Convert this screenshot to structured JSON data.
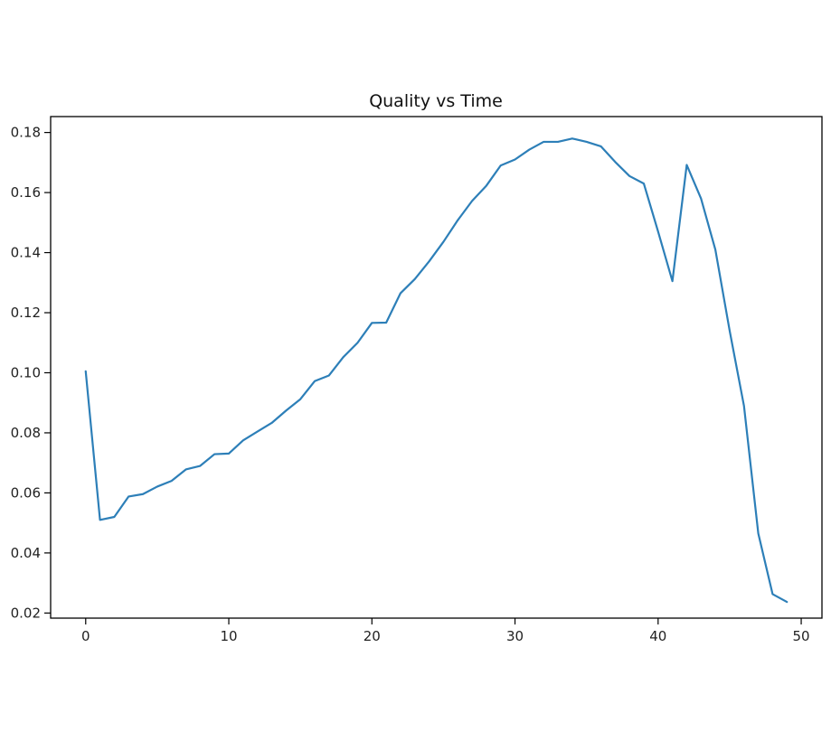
{
  "chart_data": {
    "type": "line",
    "title": "Quality vs Time",
    "xlabel": "",
    "ylabel": "",
    "xlim": [
      -2.45,
      51.45
    ],
    "ylim": [
      0.0183,
      0.1853
    ],
    "xticks": [
      0,
      10,
      20,
      30,
      40,
      50
    ],
    "yticks": [
      0.02,
      0.04,
      0.06,
      0.08,
      0.1,
      0.12,
      0.14,
      0.16,
      0.18
    ],
    "x_tick_labels": [
      "0",
      "10",
      "20",
      "30",
      "40",
      "50"
    ],
    "y_tick_labels": [
      "0.02",
      "0.04",
      "0.06",
      "0.08",
      "0.10",
      "0.12",
      "0.14",
      "0.16",
      "0.18"
    ],
    "grid": false,
    "line_color": "#2d7fb8",
    "series": [
      {
        "x": [
          0,
          1,
          2,
          3,
          4,
          5,
          6,
          7,
          8,
          9,
          10,
          11,
          12,
          13,
          14,
          15,
          16,
          17,
          18,
          19,
          20,
          21,
          22,
          23,
          24,
          25,
          26,
          27,
          28,
          29,
          30,
          31,
          32,
          33,
          34,
          35,
          36,
          37,
          38,
          39,
          40,
          41,
          42,
          43,
          44,
          45,
          46,
          47,
          48,
          49
        ],
        "values": [
          0.1005,
          0.051,
          0.052,
          0.0588,
          0.0596,
          0.0621,
          0.064,
          0.0678,
          0.069,
          0.0729,
          0.0731,
          0.0775,
          0.0804,
          0.0833,
          0.0874,
          0.0912,
          0.0972,
          0.0991,
          0.1052,
          0.11,
          0.1166,
          0.1167,
          0.1265,
          0.1312,
          0.1371,
          0.1436,
          0.1508,
          0.1572,
          0.1623,
          0.169,
          0.171,
          0.1743,
          0.1769,
          0.1769,
          0.178,
          0.1769,
          0.1754,
          0.1702,
          0.1655,
          0.163,
          0.147,
          0.1305,
          0.1692,
          0.158,
          0.141,
          0.114,
          0.089,
          0.0465,
          0.0263,
          0.0237
        ]
      }
    ]
  }
}
